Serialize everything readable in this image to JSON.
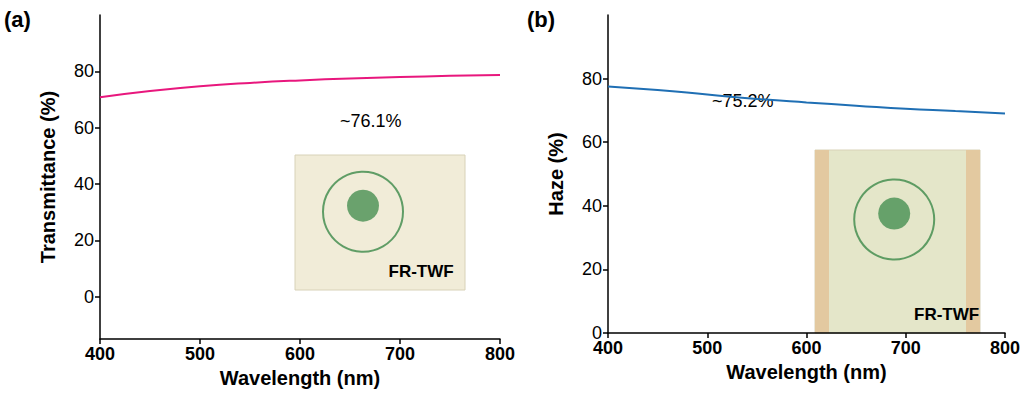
{
  "chart_data": [
    {
      "type": "line",
      "title": "(a)",
      "x": [
        400,
        450,
        500,
        550,
        600,
        650,
        700,
        750,
        800
      ],
      "values": [
        70.8,
        73.0,
        74.7,
        75.9,
        76.8,
        77.5,
        78.0,
        78.4,
        78.7
      ],
      "color": "#e8177d",
      "x_label": "Wavelength (nm)",
      "y_label": "Transmittance (%)",
      "xlim": [
        400,
        800
      ],
      "xticks": [
        400,
        500,
        600,
        700,
        800
      ],
      "ylim": [
        -15,
        100
      ],
      "yticks": [
        0,
        20,
        40,
        60,
        80
      ],
      "grid": false,
      "annotations": [
        {
          "text": "~76.1%"
        },
        {
          "text": "FR-TWF"
        }
      ]
    },
    {
      "type": "line",
      "title": "(b)",
      "x": [
        400,
        450,
        500,
        550,
        600,
        650,
        700,
        750,
        800
      ],
      "values": [
        77.5,
        76.4,
        75.0,
        73.6,
        72.5,
        71.5,
        70.5,
        69.8,
        69.0
      ],
      "color": "#1f6fb4",
      "x_label": "Wavelength (nm)",
      "y_label": "Haze (%)",
      "xlim": [
        400,
        800
      ],
      "xticks": [
        400,
        500,
        600,
        700,
        800
      ],
      "ylim": [
        0,
        100
      ],
      "yticks": [
        0,
        20,
        40,
        60,
        80
      ],
      "grid": false,
      "annotations": [
        {
          "text": "~75.2%"
        },
        {
          "text": "FR-TWF"
        }
      ]
    }
  ]
}
